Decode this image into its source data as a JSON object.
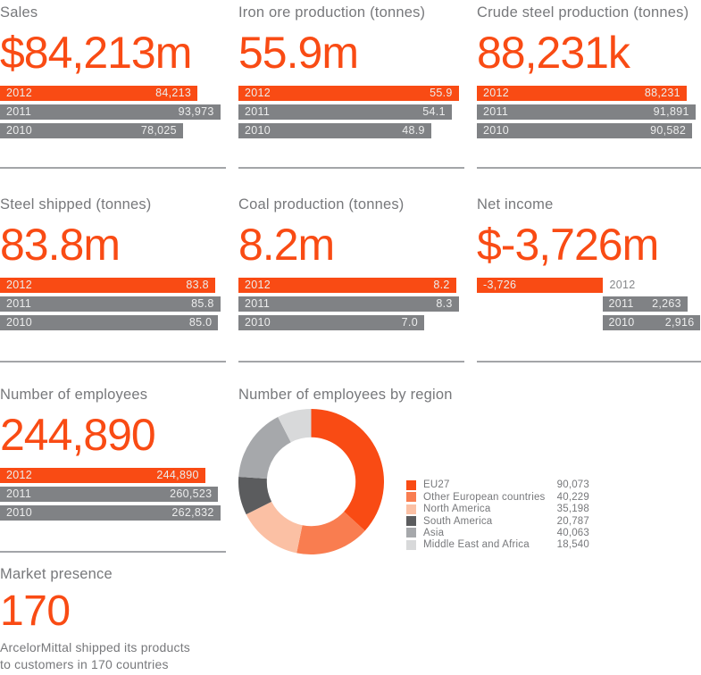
{
  "page": {
    "background": "#ffffff",
    "accent_color": "#f94b14",
    "bar_gray": "#808285",
    "title_gray": "#77787b",
    "divider_color": "#a3a5a8",
    "bar_text_color": "#eceded"
  },
  "chart_data": [
    {
      "type": "bar",
      "id": "sales",
      "title": "Sales",
      "headline": "$84,213m",
      "orientation": "horizontal",
      "categories": [
        "2012",
        "2011",
        "2010"
      ],
      "values": [
        84213,
        93973,
        78025
      ],
      "labels": [
        "84,213",
        "93,973",
        "78,025"
      ],
      "highlight_index": 0
    },
    {
      "type": "bar",
      "id": "iron-ore-production",
      "title": "Iron ore production (tonnes)",
      "headline": "55.9m",
      "orientation": "horizontal",
      "categories": [
        "2012",
        "2011",
        "2010"
      ],
      "values": [
        55.9,
        54.1,
        48.9
      ],
      "labels": [
        "55.9",
        "54.1",
        "48.9"
      ],
      "highlight_index": 0
    },
    {
      "type": "bar",
      "id": "crude-steel-production",
      "title": "Crude steel production (tonnes)",
      "headline": "88,231k",
      "orientation": "horizontal",
      "categories": [
        "2012",
        "2011",
        "2010"
      ],
      "values": [
        88231,
        91891,
        90582
      ],
      "labels": [
        "88,231",
        "91,891",
        "90,582"
      ],
      "highlight_index": 0
    },
    {
      "type": "bar",
      "id": "steel-shipped",
      "title": "Steel shipped (tonnes)",
      "headline": "83.8m",
      "orientation": "horizontal",
      "categories": [
        "2012",
        "2011",
        "2010"
      ],
      "values": [
        83.8,
        85.8,
        85.0
      ],
      "labels": [
        "83.8",
        "85.8",
        "85.0"
      ],
      "highlight_index": 0
    },
    {
      "type": "bar",
      "id": "coal-production",
      "title": "Coal production (tonnes)",
      "headline": "8.2m",
      "orientation": "horizontal",
      "categories": [
        "2012",
        "2011",
        "2010"
      ],
      "values": [
        8.2,
        8.3,
        7.0
      ],
      "labels": [
        "8.2",
        "8.3",
        "7.0"
      ],
      "highlight_index": 0
    },
    {
      "type": "bar",
      "id": "net-income",
      "title": "Net income",
      "headline": "$-3,726m",
      "orientation": "horizontal",
      "layout": "diverging",
      "categories": [
        "2012",
        "2011",
        "2010"
      ],
      "values": [
        -3726,
        2263,
        2916
      ],
      "labels": [
        "-3,726",
        "2,263",
        "2,916"
      ],
      "highlight_index": 0
    },
    {
      "type": "bar",
      "id": "number-of-employees",
      "title": "Number of employees",
      "headline": "244,890",
      "orientation": "horizontal",
      "categories": [
        "2012",
        "2011",
        "2010"
      ],
      "values": [
        244890,
        260523,
        262832
      ],
      "labels": [
        "244,890",
        "260,523",
        "262,832"
      ],
      "highlight_index": 0
    },
    {
      "type": "donut",
      "id": "employees-by-region",
      "title": "Number of employees by region",
      "total": 244890,
      "legend_position": "right",
      "segments": [
        {
          "label": "EU27",
          "value": 90073,
          "display": "90,073",
          "color": "#f94b14"
        },
        {
          "label": "Other European countries",
          "value": 40229,
          "display": "40,229",
          "color": "#f97d50"
        },
        {
          "label": "North America",
          "value": 35198,
          "display": "35,198",
          "color": "#fbc0a4"
        },
        {
          "label": "South America",
          "value": 20787,
          "display": "20,787",
          "color": "#5b5c5e"
        },
        {
          "label": "Asia",
          "value": 40063,
          "display": "40,063",
          "color": "#a6a8ab"
        },
        {
          "label": "Middle East and Africa",
          "value": 18540,
          "display": "18,540",
          "color": "#d8d9da"
        }
      ]
    }
  ],
  "market_presence": {
    "title": "Market presence",
    "headline": "170",
    "description_line1": "ArcelorMittal shipped its products",
    "description_line2": "to customers in 170 countries"
  }
}
